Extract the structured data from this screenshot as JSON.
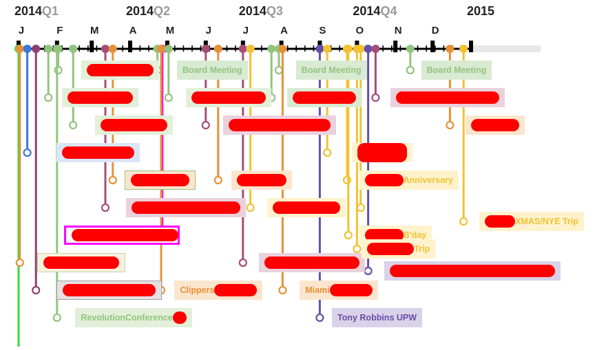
{
  "chart_data": {
    "type": "timeline",
    "axis": {
      "start": "2014-01-01",
      "end": "2015-01-25",
      "quarters": [
        {
          "year": "2014",
          "quarter": "Q1",
          "date": "2014-01-01"
        },
        {
          "year": "2014",
          "quarter": "Q2",
          "date": "2014-04-01"
        },
        {
          "year": "2014",
          "quarter": "Q3",
          "date": "2014-07-01"
        },
        {
          "year": "2014",
          "quarter": "Q4",
          "date": "2014-10-01"
        },
        {
          "year": "2015",
          "quarter": "",
          "date": "2015-01-01"
        }
      ],
      "months": [
        {
          "label": "J",
          "date": "2014-01-01"
        },
        {
          "label": "F",
          "date": "2014-02-01"
        },
        {
          "label": "M",
          "date": "2014-03-01"
        },
        {
          "label": "A",
          "date": "2014-04-01"
        },
        {
          "label": "M",
          "date": "2014-05-01"
        },
        {
          "label": "J",
          "date": "2014-06-01"
        },
        {
          "label": "J",
          "date": "2014-07-01"
        },
        {
          "label": "A",
          "date": "2014-08-01"
        },
        {
          "label": "S",
          "date": "2014-09-01"
        },
        {
          "label": "O",
          "date": "2014-10-01"
        },
        {
          "label": "N",
          "date": "2014-11-01"
        },
        {
          "label": "D",
          "date": "2014-12-01"
        }
      ]
    },
    "events": [
      {
        "date": "2014-01-01",
        "end": "2015-01-25",
        "row": 14,
        "color": "#33dd33",
        "labels": []
      },
      {
        "date": "2014-01-02",
        "row": 8,
        "color": "#e69138",
        "labels": [
          ""
        ],
        "redact": [
          110
        ],
        "box_date": "2014-01-08",
        "fill": "#fdf0dd",
        "border": "#bcd9a8"
      },
      {
        "date": "2014-01-08",
        "row": 4,
        "color": "#3c78d8",
        "labels": [
          ""
        ],
        "redact": [
          105
        ],
        "box_date": "2014-01-24",
        "fill": "#dae6f7",
        "border": ""
      },
      {
        "date": "2014-01-15",
        "row": 9,
        "color": "#8e3f6f",
        "labels": [
          ""
        ],
        "redact": [
          135
        ],
        "box_date": "2014-01-24",
        "fill": "#e6e0e3",
        "border": "#a0a0a0"
      },
      {
        "date": "2014-01-25",
        "row": 2,
        "color": "#93c47d",
        "labels": [
          ""
        ],
        "redact": [
          95
        ],
        "box_date": "2014-01-28",
        "fill": "#e2efd9",
        "border": ""
      },
      {
        "date": "2014-02-02",
        "row": 1,
        "color": "#93c47d",
        "labels": [
          ""
        ],
        "redact": [
          97
        ],
        "box_date": "2014-02-13",
        "fill": "#e2efd9",
        "border": ""
      },
      {
        "date": "2014-02-01",
        "row": 10,
        "color": "#93c47d",
        "labels": [
          "Revolution ",
          "Conference"
        ],
        "redact": [
          20
        ],
        "box_date": "2014-02-08",
        "fill": "#e2efd9",
        "border": ""
      },
      {
        "date": "2014-02-14",
        "row": 3,
        "color": "#93c47d",
        "labels": [
          ""
        ],
        "redact": [
          97
        ],
        "box_date": "2014-02-24",
        "fill": "#e2efd9",
        "border": ""
      },
      {
        "date": "2014-03-12",
        "row": 6,
        "color": "#a64d79",
        "labels": [
          ""
        ],
        "redact": [
          158
        ],
        "box_date": "2014-03-21",
        "fill": "#ead1dc",
        "border": ""
      },
      {
        "date": "2014-03-18",
        "row": 5,
        "color": "#e69138",
        "labels": [
          ""
        ],
        "redact": [
          85
        ],
        "box_date": "2014-03-20",
        "fill": "#fce5cd",
        "border": "#93c47d"
      },
      {
        "date": "2014-04-23",
        "row": 1,
        "color": "#93c47d",
        "labels": [
          "Board Meeting"
        ],
        "redact": [],
        "box_date": "2014-05-01",
        "fill": "#d9ead3",
        "border": ""
      },
      {
        "date": "2014-04-27",
        "row": 7,
        "color": "#ff00ff",
        "labels": [
          ""
        ],
        "redact": [
          155
        ],
        "box_date": "2014-01-30",
        "fill": "#ffffff",
        "border": "#ff00ff",
        "box_width": 168
      },
      {
        "date": "2014-04-26",
        "row": 9,
        "color": "#e69138",
        "labels": [
          "Clippers ",
          ""
        ],
        "redact": [
          62
        ],
        "box_date": "2014-04-29",
        "fill": "#fce5cd",
        "border": ""
      },
      {
        "date": "2014-05-02",
        "row": 2,
        "color": "#93c47d",
        "labels": [
          ""
        ],
        "redact": [
          108
        ],
        "box_date": "2014-05-08",
        "fill": "#e2efd9",
        "border": ""
      },
      {
        "date": "2014-06-01",
        "row": 3,
        "color": "#a64d79",
        "labels": [
          ""
        ],
        "redact": [
          148
        ],
        "box_date": "2014-06-07",
        "fill": "#ead1dc",
        "border": ""
      },
      {
        "date": "2014-06-11",
        "row": 5,
        "color": "#e69138",
        "labels": [
          ""
        ],
        "redact": [
          72
        ],
        "box_date": "2014-06-14",
        "fill": "#fce5cd",
        "border": ""
      },
      {
        "date": "2014-07-01",
        "row": 8,
        "color": "#a64d79",
        "labels": [
          ""
        ],
        "redact": [
          138
        ],
        "box_date": "2014-07-06",
        "fill": "#ead1dc",
        "border": ""
      },
      {
        "date": "2014-07-07",
        "row": 6,
        "color": "#f1c232",
        "labels": [
          ""
        ],
        "redact": [
          98
        ],
        "box_date": "2014-07-13",
        "fill": "#fff2cc",
        "border": ""
      },
      {
        "date": "2014-07-24",
        "row": 2,
        "color": "#93c47d",
        "labels": [
          ""
        ],
        "redact": [
          92
        ],
        "box_date": "2014-07-29",
        "fill": "#d9ead3",
        "border": ""
      },
      {
        "date": "2014-07-30",
        "row": 1,
        "color": "#93c47d",
        "labels": [
          "Board Meeting"
        ],
        "redact": [],
        "box_date": "2014-08-05",
        "fill": "#d9ead3",
        "border": ""
      },
      {
        "date": "2014-08-02",
        "row": 9,
        "color": "#e69138",
        "labels": [
          "Miami",
          ""
        ],
        "redact": [
          62
        ],
        "box_date": "2014-08-08",
        "fill": "#fce5cd",
        "border": ""
      },
      {
        "date": "2014-09-01",
        "row": 10,
        "color": "#674ea7",
        "labels": [
          "Tony Robbins UPW"
        ],
        "redact": [],
        "box_date": "2014-09-03",
        "fill": "#d9d2e9",
        "border": ""
      },
      {
        "date": "2014-09-07",
        "row": 4,
        "color": "#f1c232",
        "labels": [
          ""
        ],
        "redact": [
          72
        ],
        "box_date": "2014-09-19",
        "fill": "#fff2cc",
        "border": "",
        "redact_rows": 2
      },
      {
        "date": "2014-09-23",
        "row": 5,
        "color": "#f1c232",
        "labels": [
          "",
          "Anniversary"
        ],
        "redact": [
          56
        ],
        "box_date": "2014-09-25",
        "fill": "#fff2cc",
        "border": ""
      },
      {
        "date": "2014-09-24",
        "row": 7,
        "color": "#f1c232",
        "labels": [
          "",
          "B'day"
        ],
        "redact": [
          56
        ],
        "box_date": "2014-09-25",
        "fill": "#fff2cc",
        "border": ""
      },
      {
        "date": "2014-10-01",
        "row": 7.5,
        "color": "#f1c232",
        "labels": [
          "",
          "Trip"
        ],
        "redact": [
          68
        ],
        "box_date": "2014-09-27",
        "fill": "#fff2cc",
        "border": ""
      },
      {
        "date": "2014-10-04",
        "row": 6,
        "color": "#f1c232",
        "labels": [
          ""
        ],
        "redact": [],
        "box_date": "2014-10-04",
        "fill": "",
        "border": "",
        "hidden_box": true
      },
      {
        "date": "2014-10-10",
        "row": 8.3,
        "color": "#674ea7",
        "labels": [
          ""
        ],
        "redact": [
          240
        ],
        "box_date": "2014-10-15",
        "fill": "#d9d2e9",
        "border": ""
      },
      {
        "date": "2014-10-16",
        "row": 2,
        "color": "#a64d79",
        "labels": [
          ""
        ],
        "redact": [
          150
        ],
        "box_date": "2014-10-20",
        "fill": "#ead1dc",
        "border": ""
      },
      {
        "date": "2014-11-13",
        "row": 1,
        "color": "#93c47d",
        "labels": [
          "Board Meeting"
        ],
        "redact": [],
        "box_date": "2014-11-14",
        "fill": "#d9ead3",
        "border": ""
      },
      {
        "date": "2014-12-15",
        "row": 3,
        "color": "#e69138",
        "labels": [
          ""
        ],
        "redact": [
          70
        ],
        "box_date": "2014-12-20",
        "fill": "#fce5cd",
        "border": ""
      },
      {
        "date": "2014-12-26",
        "row": 6.5,
        "color": "#f1c232",
        "labels": [
          "",
          "XMAS/NYE Trip"
        ],
        "redact": [
          44
        ],
        "box_date": "2014-12-31",
        "fill": "#fff2cc",
        "border": ""
      }
    ]
  }
}
